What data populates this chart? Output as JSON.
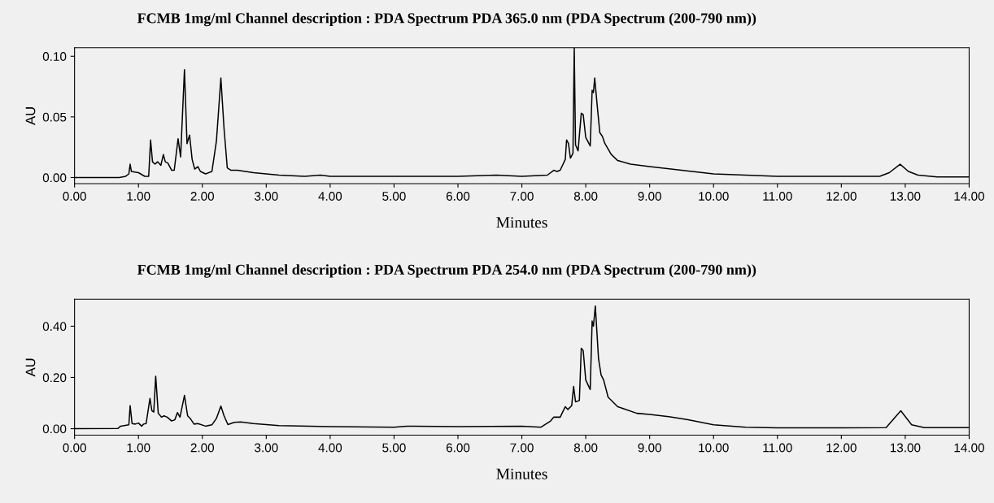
{
  "chart_data": [
    {
      "type": "line",
      "title": "FCMB 1mg/ml Channel description : PDA Spectrum PDA 365.0 nm (PDA Spectrum (200-790 nm))",
      "xlabel": "Minutes",
      "ylabel": "AU",
      "grid": false,
      "marker": "none",
      "line_style": "solid",
      "xlim": [
        0,
        14
      ],
      "ylim": [
        -0.005,
        0.107
      ],
      "xticks": [
        {
          "value": 0,
          "label": "0.00"
        },
        {
          "value": 1,
          "label": "1.00"
        },
        {
          "value": 2,
          "label": "2.00"
        },
        {
          "value": 3,
          "label": "3.00"
        },
        {
          "value": 4,
          "label": "4.00"
        },
        {
          "value": 5,
          "label": "5.00"
        },
        {
          "value": 6,
          "label": "6.00"
        },
        {
          "value": 7,
          "label": "7.00"
        },
        {
          "value": 8,
          "label": "8.00"
        },
        {
          "value": 9,
          "label": "9.00"
        },
        {
          "value": 10,
          "label": "10.00"
        },
        {
          "value": 11,
          "label": "11.00"
        },
        {
          "value": 12,
          "label": "12.00"
        },
        {
          "value": 13,
          "label": "13.00"
        },
        {
          "value": 14,
          "label": "14.00"
        }
      ],
      "yticks": [
        {
          "value": 0,
          "label": "0.00"
        },
        {
          "value": 0.05,
          "label": "0.05"
        },
        {
          "value": 0.1,
          "label": "0.10"
        }
      ],
      "series": [
        {
          "color": "#000000",
          "x": [
            0,
            0.7,
            0.8,
            0.85,
            0.87,
            0.89,
            1.0,
            1.1,
            1.16,
            1.19,
            1.22,
            1.26,
            1.3,
            1.35,
            1.39,
            1.42,
            1.46,
            1.52,
            1.56,
            1.62,
            1.66,
            1.72,
            1.76,
            1.8,
            1.84,
            1.88,
            1.93,
            1.97,
            2.05,
            2.15,
            2.22,
            2.29,
            2.34,
            2.39,
            2.45,
            2.55,
            2.8,
            3.2,
            3.6,
            3.85,
            4,
            5,
            6,
            6.6,
            7.0,
            7.4,
            7.5,
            7.55,
            7.6,
            7.68,
            7.7,
            7.73,
            7.76,
            7.8,
            7.82,
            7.84,
            7.88,
            7.93,
            7.96,
            8.0,
            8.07,
            8.1,
            8.12,
            8.14,
            8.18,
            8.22,
            8.26,
            8.3,
            8.4,
            8.5,
            8.7,
            9.0,
            9.5,
            10,
            10.5,
            11,
            12,
            12.6,
            12.75,
            12.92,
            13.05,
            13.2,
            13.5,
            14
          ],
          "values": [
            0,
            0,
            0.001,
            0.003,
            0.011,
            0.005,
            0.004,
            0.001,
            0.001,
            0.031,
            0.013,
            0.011,
            0.013,
            0.01,
            0.019,
            0.013,
            0.012,
            0.006,
            0.006,
            0.032,
            0.017,
            0.089,
            0.028,
            0.035,
            0.015,
            0.007,
            0.009,
            0.005,
            0.003,
            0.005,
            0.03,
            0.082,
            0.04,
            0.008,
            0.006,
            0.006,
            0.004,
            0.002,
            0.001,
            0.002,
            0.001,
            0.001,
            0.001,
            0.002,
            0.001,
            0.002,
            0.006,
            0.005,
            0.006,
            0.015,
            0.031,
            0.028,
            0.016,
            0.02,
            0.107,
            0.027,
            0.022,
            0.053,
            0.052,
            0.033,
            0.026,
            0.072,
            0.07,
            0.082,
            0.059,
            0.037,
            0.034,
            0.028,
            0.019,
            0.014,
            0.011,
            0.009,
            0.006,
            0.003,
            0.002,
            0.001,
            0.001,
            0.001,
            0.004,
            0.011,
            0.005,
            0.002,
            0.0005,
            0.0005
          ]
        }
      ]
    },
    {
      "type": "line",
      "title": "FCMB 1mg/ml Channel description : PDA Spectrum PDA 254.0 nm (PDA Spectrum (200-790 nm))",
      "xlabel": "Minutes",
      "ylabel": "AU",
      "grid": false,
      "marker": "none",
      "line_style": "solid",
      "xlim": [
        0,
        14
      ],
      "ylim": [
        -0.025,
        0.505
      ],
      "xticks": [
        {
          "value": 0,
          "label": "0.00"
        },
        {
          "value": 1,
          "label": "1.00"
        },
        {
          "value": 2,
          "label": "2.00"
        },
        {
          "value": 3,
          "label": "3.00"
        },
        {
          "value": 4,
          "label": "4.00"
        },
        {
          "value": 5,
          "label": "5.00"
        },
        {
          "value": 6,
          "label": "6.00"
        },
        {
          "value": 7,
          "label": "7.00"
        },
        {
          "value": 8,
          "label": "8.00"
        },
        {
          "value": 9,
          "label": "9.00"
        },
        {
          "value": 10,
          "label": "10.00"
        },
        {
          "value": 11,
          "label": "11.00"
        },
        {
          "value": 12,
          "label": "12.00"
        },
        {
          "value": 13,
          "label": "13.00"
        },
        {
          "value": 14,
          "label": "14.00"
        }
      ],
      "yticks": [
        {
          "value": 0,
          "label": "0.00"
        },
        {
          "value": 0.2,
          "label": "0.20"
        },
        {
          "value": 0.4,
          "label": "0.40"
        }
      ],
      "series": [
        {
          "color": "#000000",
          "x": [
            0,
            0.68,
            0.72,
            0.85,
            0.87,
            0.9,
            0.95,
            1.0,
            1.05,
            1.08,
            1.12,
            1.18,
            1.21,
            1.24,
            1.27,
            1.31,
            1.36,
            1.4,
            1.45,
            1.52,
            1.57,
            1.61,
            1.65,
            1.72,
            1.77,
            1.81,
            1.87,
            1.93,
            2.05,
            2.15,
            2.22,
            2.29,
            2.34,
            2.4,
            2.5,
            2.6,
            2.8,
            3.2,
            4,
            5,
            5.2,
            6,
            7.0,
            7.3,
            7.45,
            7.5,
            7.6,
            7.68,
            7.72,
            7.78,
            7.81,
            7.84,
            7.9,
            7.93,
            7.96,
            8.0,
            8.07,
            8.1,
            8.12,
            8.15,
            8.2,
            8.24,
            8.28,
            8.35,
            8.5,
            8.8,
            9.0,
            9.3,
            9.6,
            10,
            10.5,
            11,
            12,
            12.7,
            12.93,
            13.1,
            13.3,
            14
          ],
          "values": [
            0,
            0.001,
            0.01,
            0.015,
            0.09,
            0.02,
            0.018,
            0.022,
            0.01,
            0.018,
            0.02,
            0.118,
            0.07,
            0.065,
            0.205,
            0.06,
            0.045,
            0.05,
            0.045,
            0.03,
            0.035,
            0.063,
            0.045,
            0.13,
            0.05,
            0.04,
            0.018,
            0.02,
            0.01,
            0.015,
            0.04,
            0.088,
            0.05,
            0.016,
            0.025,
            0.026,
            0.02,
            0.012,
            0.008,
            0.006,
            0.01,
            0.008,
            0.01,
            0.006,
            0.03,
            0.045,
            0.045,
            0.086,
            0.075,
            0.09,
            0.165,
            0.105,
            0.11,
            0.314,
            0.305,
            0.19,
            0.153,
            0.42,
            0.4,
            0.479,
            0.273,
            0.21,
            0.19,
            0.123,
            0.086,
            0.06,
            0.056,
            0.047,
            0.035,
            0.015,
            0.006,
            0.003,
            0.003,
            0.004,
            0.07,
            0.015,
            0.004,
            0.004
          ]
        }
      ]
    }
  ]
}
